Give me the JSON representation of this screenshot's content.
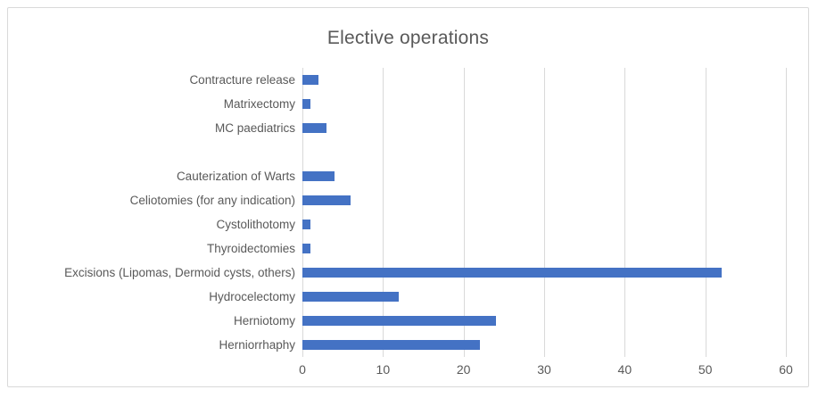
{
  "chart_data": {
    "type": "bar",
    "orientation": "horizontal",
    "title": "Elective operations",
    "categories": [
      "Contracture release",
      "Matrixectomy",
      "MC paediatrics",
      "",
      "Cauterization of Warts",
      "Celiotomies (for any indication)",
      "Cystolithotomy",
      "Thyroidectomies",
      "Excisions (Lipomas, Dermoid cysts, others)",
      "Hydrocelectomy",
      "Herniotomy",
      "Herniorrhaphy"
    ],
    "values": [
      2,
      1,
      3,
      null,
      4,
      6,
      1,
      1,
      52,
      12,
      24,
      22
    ],
    "xlabel": "",
    "ylabel": "",
    "xlim": [
      0,
      60
    ],
    "xticks": [
      0,
      10,
      20,
      30,
      40,
      50,
      60
    ],
    "grid": "vertical-only",
    "legend": "none",
    "colors": {
      "bar": "#4472c4",
      "gridline": "#d9d9d9",
      "text": "#595959",
      "chart_border": "#d9d9d9",
      "background": "#ffffff"
    }
  }
}
